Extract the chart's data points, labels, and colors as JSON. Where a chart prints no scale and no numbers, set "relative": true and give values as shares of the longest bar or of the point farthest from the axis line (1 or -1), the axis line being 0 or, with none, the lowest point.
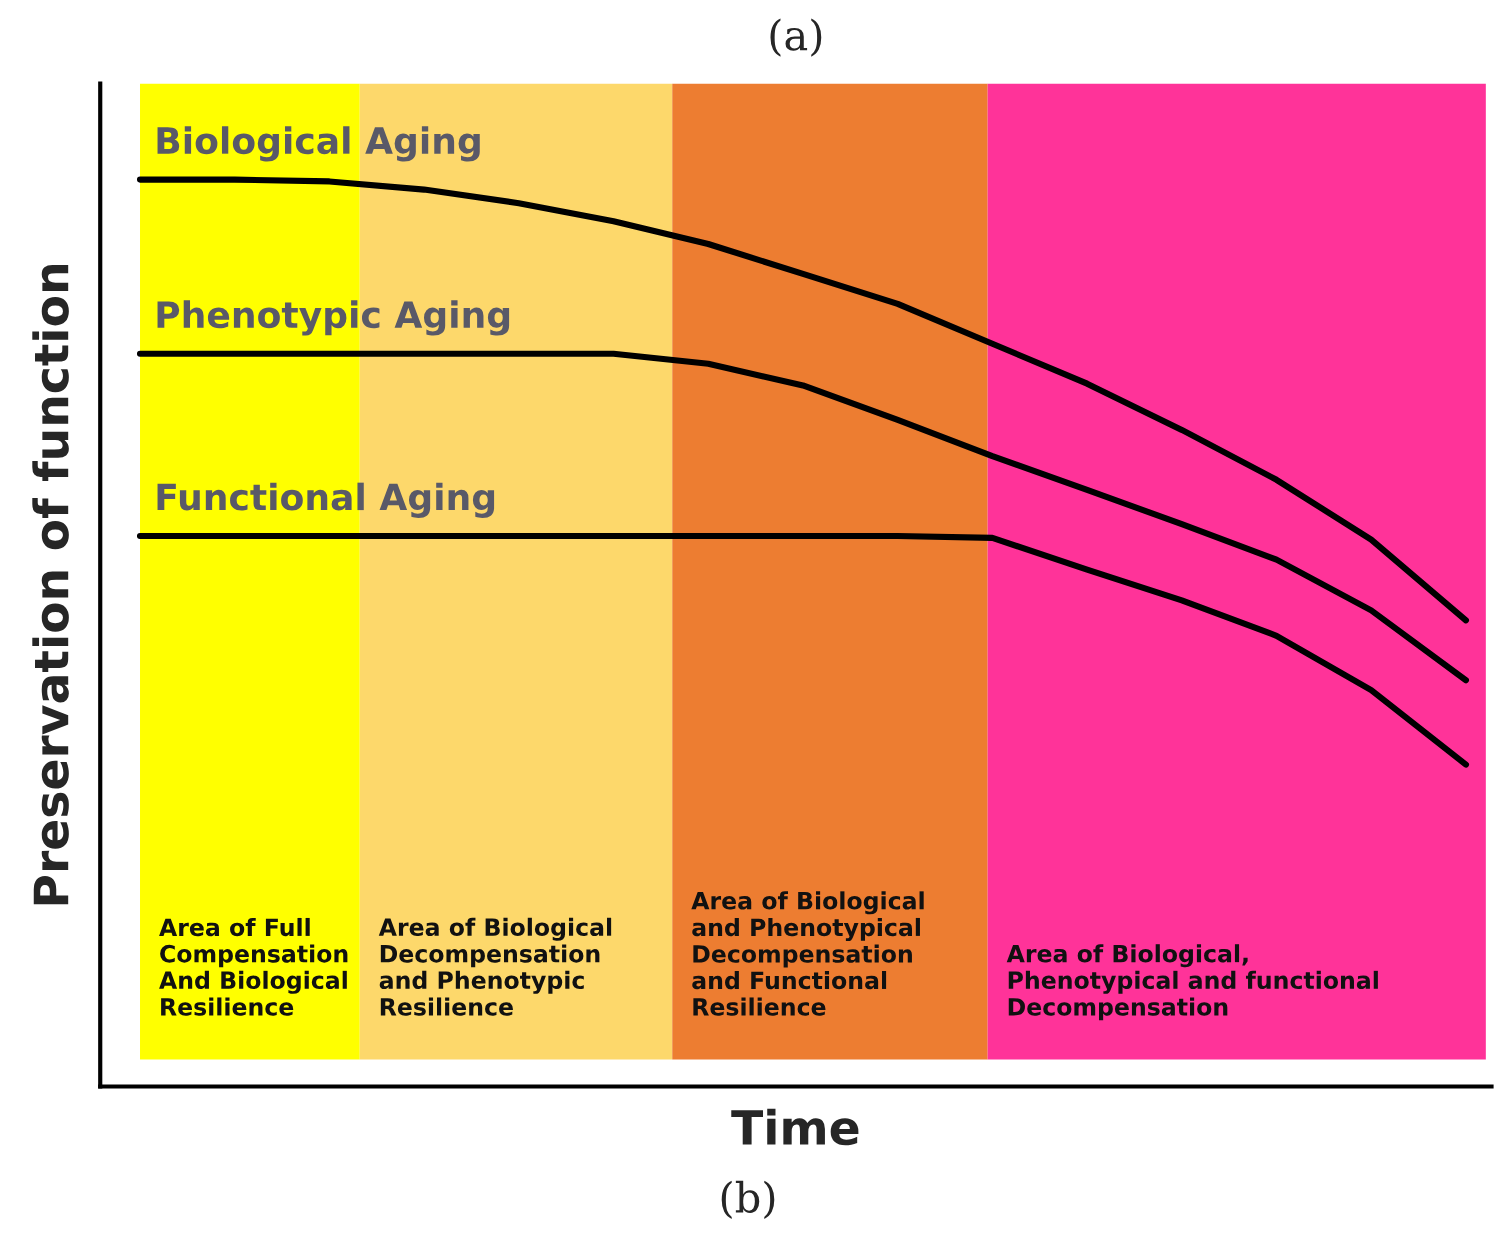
{
  "chart_data": {
    "type": "line",
    "relative": true,
    "title": "(a)",
    "xlabel": "Time",
    "ylabel": "Preservation of function",
    "categories": [
      null,
      null,
      null,
      null,
      null,
      null,
      null,
      null,
      null,
      null,
      null,
      null,
      null,
      null,
      null
    ],
    "series": [
      {
        "name": "Biological Aging",
        "color": "#000000",
        "values": [
          1.0,
          1.0,
          0.998,
          0.989,
          0.974,
          0.954,
          0.929,
          0.896,
          0.863,
          0.819,
          0.775,
          0.724,
          0.669,
          0.603,
          0.514
        ]
      },
      {
        "name": "Phenotypic Aging",
        "color": "#000000",
        "values": [
          0.808,
          0.808,
          0.808,
          0.808,
          0.808,
          0.808,
          0.797,
          0.773,
          0.735,
          0.695,
          0.658,
          0.62,
          0.581,
          0.525,
          0.448
        ]
      },
      {
        "name": "Functional Aging",
        "color": "#000000",
        "values": [
          0.607,
          0.607,
          0.607,
          0.607,
          0.607,
          0.607,
          0.607,
          0.607,
          0.607,
          0.605,
          0.57,
          0.536,
          0.497,
          0.437,
          0.355
        ]
      }
    ],
    "annotations": [
      "Area of Full\nCompensation\nAnd Biological\nResilience",
      "Area of Biological\nDecompensation\nand Phenotypic\nResilience",
      "Area of Biological\nand Phenotypical\nDecompensation\nand Functional\nResilience",
      "Area of Biological,\nPhenotypical and functional\nDecompensation",
      "(b)"
    ],
    "legend": false,
    "marker": "none",
    "line_style": "solid"
  }
}
